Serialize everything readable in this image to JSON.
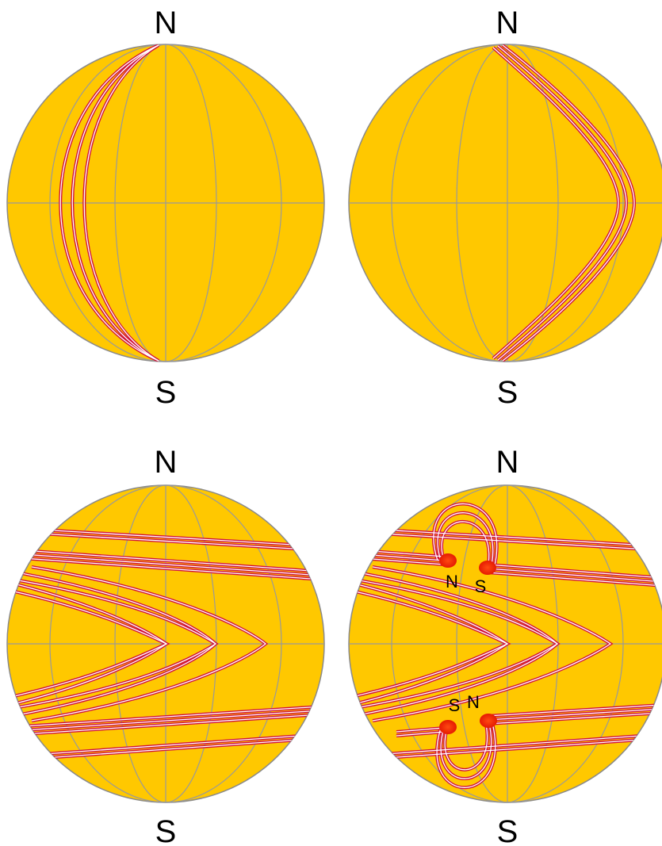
{
  "panels": [
    {
      "north": "N",
      "south": "S"
    },
    {
      "north": "N",
      "south": "S"
    },
    {
      "north": "N",
      "south": "S"
    },
    {
      "north": "N",
      "south": "S",
      "spots": {
        "upper_left": "N",
        "upper_right": "S",
        "lower_left": "S",
        "lower_right": "N"
      }
    }
  ],
  "colors": {
    "sun": "#FFC800",
    "grid": "#999999",
    "field_line": "#D0103A",
    "spot": "#FF2A00"
  }
}
